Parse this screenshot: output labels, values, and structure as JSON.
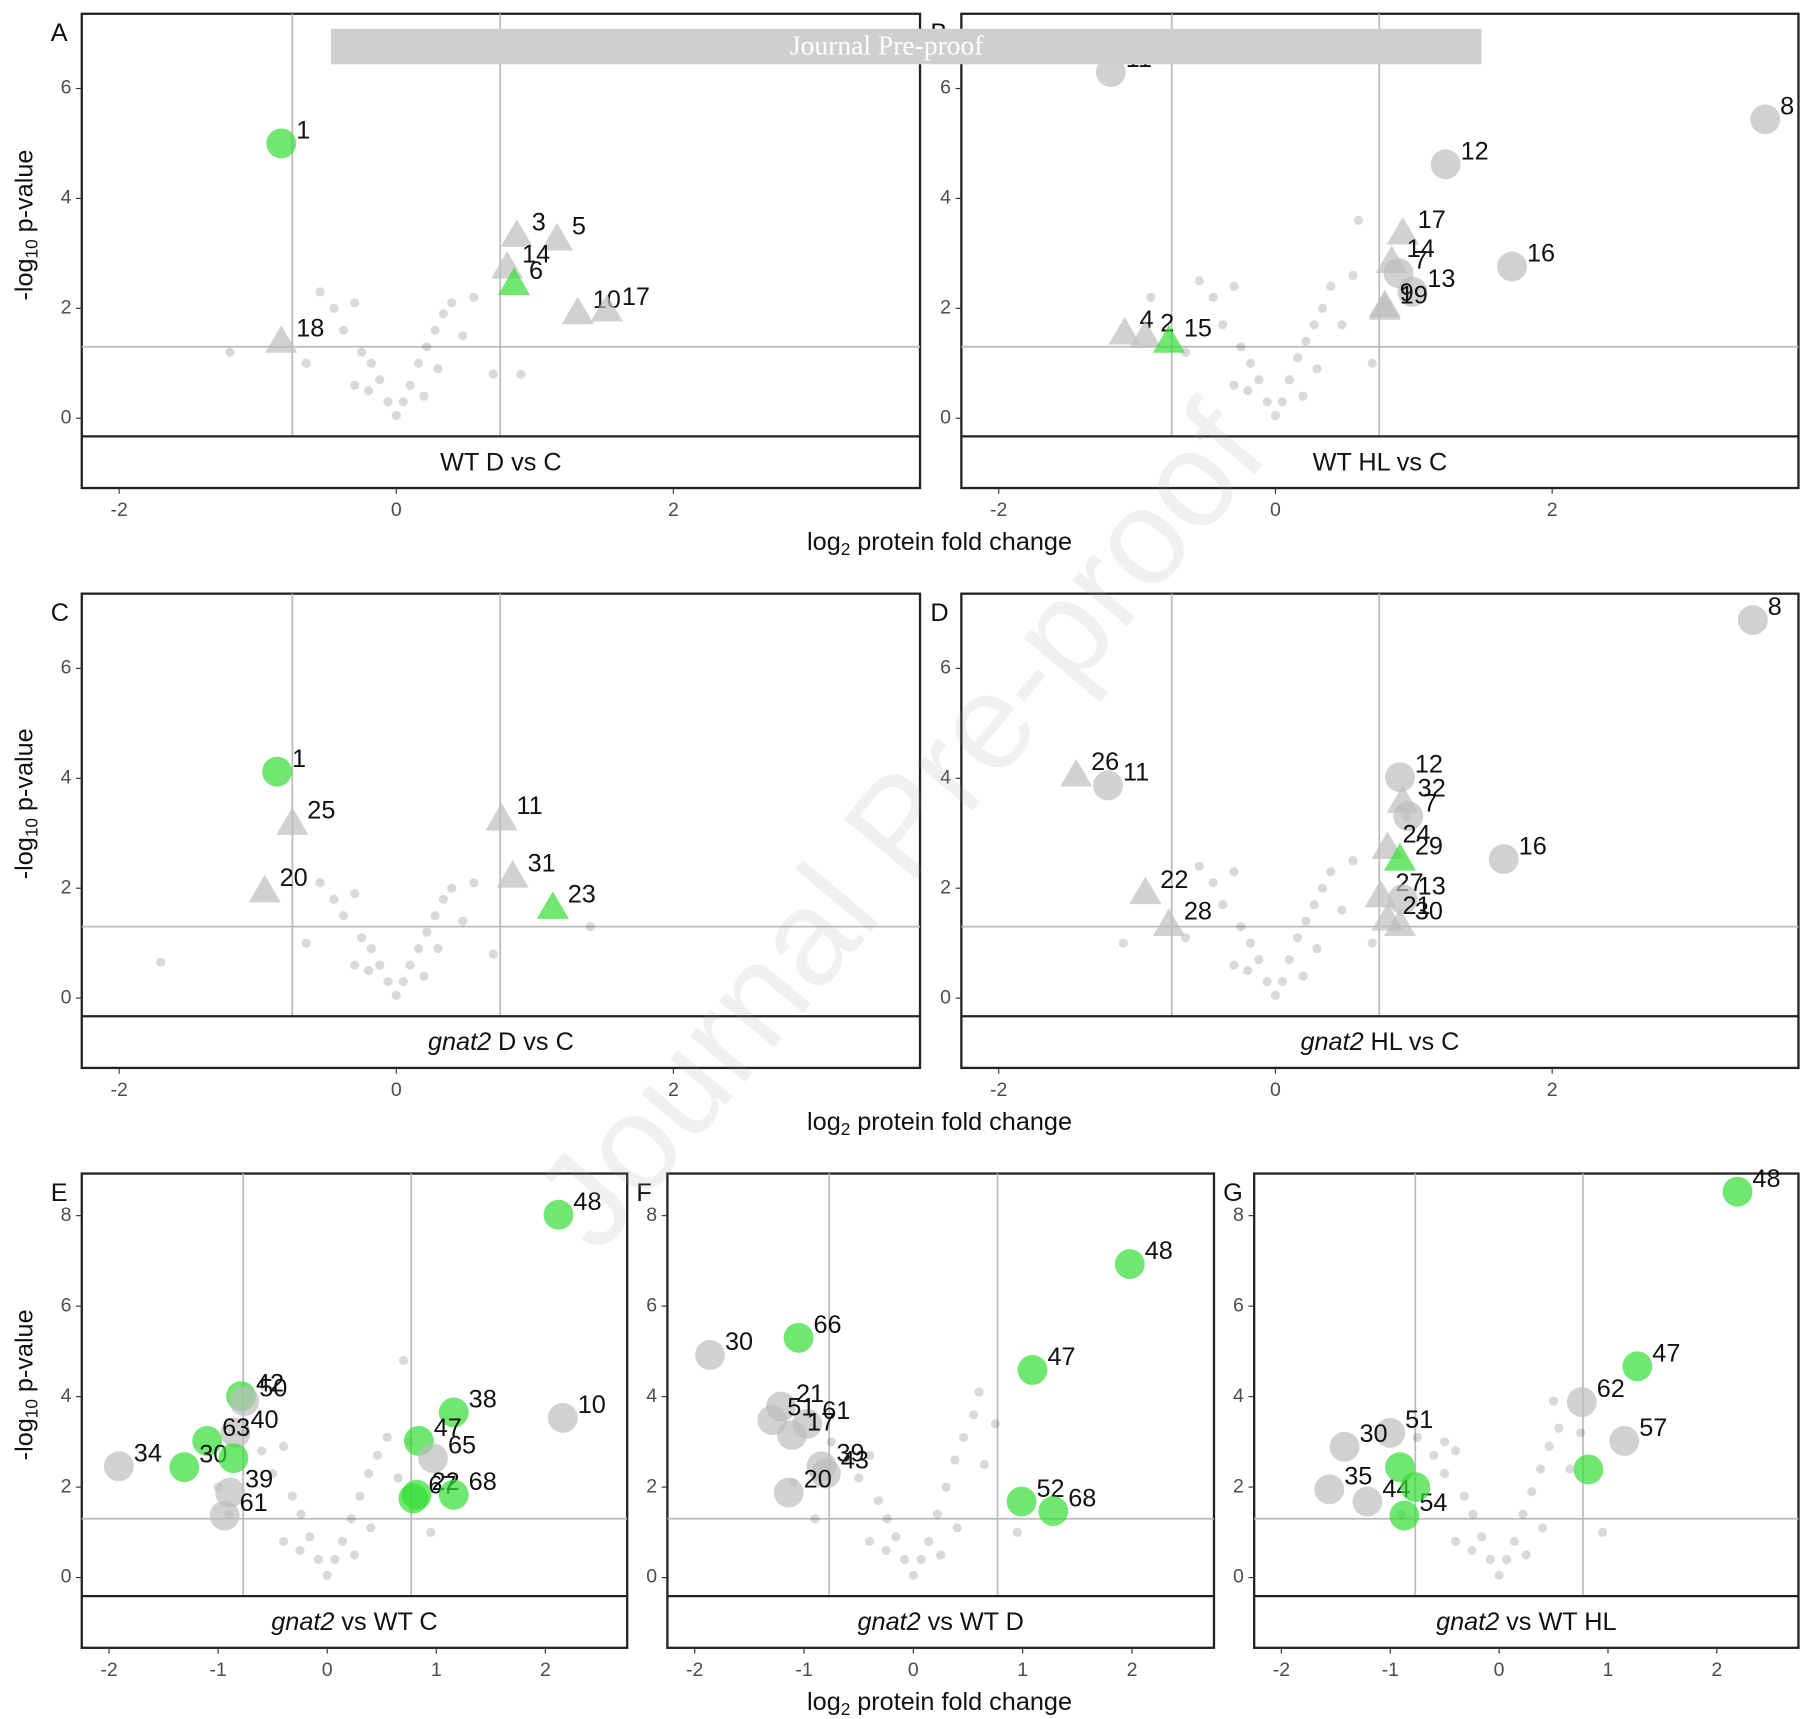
{
  "watermark": {
    "banner": "Journal Pre-proof",
    "diagonal": "Journal Pre-proof"
  },
  "x_axis_titles": [
    {
      "main": "log",
      "sub": "2",
      "rest": "protein fold change"
    },
    {
      "main": "log",
      "sub": "2",
      "rest": "protein fold change"
    },
    {
      "main": "log",
      "sub": "2",
      "rest": "protein fold change"
    }
  ],
  "y_axis_titles": [
    {
      "main": "-log",
      "sub": "10",
      "rest": "p-value"
    },
    {
      "main": "-log",
      "sub": "10",
      "rest": "p-value"
    },
    {
      "main": "-log",
      "sub": "10",
      "rest": "p-value"
    }
  ],
  "chart_data": [
    {
      "type": "scatter",
      "panel": "A",
      "strip": "WT D vs C",
      "xlim": [
        -2.27,
        3.78
      ],
      "ylim": [
        -0.33,
        7.36
      ],
      "xticks": [
        -2,
        0,
        2
      ],
      "yticks": [
        0,
        2,
        4,
        6
      ],
      "vlines": [
        -0.75,
        0.75
      ],
      "hline": 1.3,
      "background": {
        "x": [
          -0.55,
          -0.45,
          -0.38,
          -0.3,
          -0.25,
          -0.18,
          -0.12,
          -0.06,
          0,
          0.05,
          0.1,
          0.16,
          0.22,
          0.28,
          0.34,
          0.4,
          0.48,
          0.56,
          -0.2,
          0.2,
          -0.65,
          0.7,
          0.3,
          -0.3,
          -1.2,
          0.9
        ],
        "y": [
          2.3,
          2.0,
          1.6,
          2.1,
          1.2,
          1.0,
          0.7,
          0.3,
          0.05,
          0.3,
          0.6,
          1.0,
          1.3,
          1.6,
          1.9,
          2.1,
          1.5,
          2.2,
          0.5,
          0.4,
          1.0,
          0.8,
          0.9,
          0.6,
          1.2,
          0.8
        ]
      },
      "highlights": {
        "x": [
          -0.83,
          0.87,
          1.16,
          0.8,
          0.85,
          1.31,
          1.52,
          -0.83
        ],
        "y": [
          5.0,
          3.33,
          3.26,
          2.75,
          2.45,
          1.92,
          1.97,
          1.4
        ],
        "labels": [
          "1",
          "3",
          "5",
          "14",
          "6",
          "10",
          "17",
          "18"
        ],
        "shape": [
          "circle",
          "triangle",
          "triangle",
          "triangle",
          "triangle",
          "triangle",
          "triangle",
          "triangle"
        ],
        "color": [
          "#33dd33",
          "#bdbdbd",
          "#bdbdbd",
          "#bdbdbd",
          "#33dd33",
          "#bdbdbd",
          "#bdbdbd",
          "#bdbdbd"
        ]
      }
    },
    {
      "type": "scatter",
      "panel": "B",
      "strip": "WT HL vs C",
      "xlim": [
        -2.27,
        3.78
      ],
      "ylim": [
        -0.33,
        7.36
      ],
      "xticks": [
        -2,
        0,
        2
      ],
      "yticks": [
        0,
        2,
        4,
        6
      ],
      "vlines": [
        -0.75,
        0.75
      ],
      "hline": 1.3,
      "background": {
        "x": [
          -0.55,
          -0.45,
          -0.38,
          -0.3,
          -0.25,
          -0.18,
          -0.12,
          -0.06,
          0,
          0.05,
          0.1,
          0.16,
          0.22,
          0.28,
          0.34,
          0.4,
          0.48,
          0.56,
          -0.2,
          0.2,
          -0.65,
          0.7,
          0.3,
          -0.3,
          -0.9,
          0.6
        ],
        "y": [
          2.5,
          2.2,
          1.7,
          2.4,
          1.3,
          1.0,
          0.7,
          0.3,
          0.05,
          0.3,
          0.7,
          1.1,
          1.4,
          1.7,
          2.0,
          2.4,
          1.7,
          2.6,
          0.5,
          0.4,
          1.2,
          1.0,
          0.9,
          0.6,
          2.2,
          3.6
        ]
      },
      "highlights": {
        "x": [
          -1.19,
          3.54,
          1.23,
          0.92,
          0.84,
          0.89,
          1.71,
          0.99,
          0.79,
          0.79,
          -1.09,
          -0.94,
          -0.77
        ],
        "y": [
          6.3,
          5.44,
          4.62,
          3.37,
          2.85,
          2.64,
          2.76,
          2.3,
          2.05,
          2.0,
          1.55,
          1.49,
          1.4
        ],
        "labels": [
          "11",
          "8",
          "12",
          "17",
          "14",
          "7",
          "16",
          "13",
          "9",
          "19",
          "4",
          "2",
          "15"
        ],
        "shape": [
          "circle",
          "circle",
          "circle",
          "triangle",
          "triangle",
          "circle",
          "circle",
          "circle",
          "triangle",
          "triangle",
          "triangle",
          "triangle",
          "triangle"
        ],
        "color": [
          "#bdbdbd",
          "#bdbdbd",
          "#bdbdbd",
          "#bdbdbd",
          "#bdbdbd",
          "#bdbdbd",
          "#bdbdbd",
          "#bdbdbd",
          "#bdbdbd",
          "#bdbdbd",
          "#bdbdbd",
          "#bdbdbd",
          "#33dd33"
        ]
      }
    },
    {
      "type": "scatter",
      "panel": "C",
      "strip_em": "gnat2",
      "strip": "D vs C",
      "xlim": [
        -2.27,
        3.78
      ],
      "ylim": [
        -0.33,
        7.36
      ],
      "xticks": [
        -2,
        0,
        2
      ],
      "yticks": [
        0,
        2,
        4,
        6
      ],
      "vlines": [
        -0.75,
        0.75
      ],
      "hline": 1.3,
      "background": {
        "x": [
          -0.55,
          -0.45,
          -0.38,
          -0.3,
          -0.25,
          -0.18,
          -0.12,
          -0.06,
          0,
          0.05,
          0.1,
          0.16,
          0.22,
          0.28,
          0.34,
          0.4,
          0.48,
          0.56,
          -0.2,
          0.2,
          -0.65,
          0.7,
          0.3,
          -0.3,
          -1.7,
          1.4
        ],
        "y": [
          2.1,
          1.8,
          1.5,
          1.9,
          1.1,
          0.9,
          0.6,
          0.3,
          0.05,
          0.3,
          0.6,
          0.9,
          1.2,
          1.5,
          1.8,
          2.0,
          1.4,
          2.1,
          0.5,
          0.4,
          1.0,
          0.8,
          0.9,
          0.6,
          0.65,
          1.3
        ]
      },
      "highlights": {
        "x": [
          -0.86,
          -0.75,
          -0.95,
          0.76,
          0.84,
          1.13
        ],
        "y": [
          4.12,
          3.18,
          1.95,
          3.26,
          2.22,
          1.65
        ],
        "labels": [
          "1",
          "25",
          "20",
          "11",
          "31",
          "23"
        ],
        "shape": [
          "circle",
          "triangle",
          "triangle",
          "triangle",
          "triangle",
          "triangle"
        ],
        "color": [
          "#33dd33",
          "#bdbdbd",
          "#bdbdbd",
          "#bdbdbd",
          "#bdbdbd",
          "#33dd33"
        ]
      }
    },
    {
      "type": "scatter",
      "panel": "D",
      "strip_em": "gnat2",
      "strip": "HL vs C",
      "xlim": [
        -2.27,
        3.78
      ],
      "ylim": [
        -0.33,
        7.36
      ],
      "xticks": [
        -2,
        0,
        2
      ],
      "yticks": [
        0,
        2,
        4,
        6
      ],
      "vlines": [
        -0.75,
        0.75
      ],
      "hline": 1.3,
      "background": {
        "x": [
          -0.55,
          -0.45,
          -0.38,
          -0.3,
          -0.25,
          -0.18,
          -0.12,
          -0.06,
          0,
          0.05,
          0.1,
          0.16,
          0.22,
          0.28,
          0.34,
          0.4,
          0.48,
          0.56,
          -0.2,
          0.2,
          -0.65,
          0.7,
          0.3,
          -0.3,
          -1.1,
          0.95
        ],
        "y": [
          2.4,
          2.1,
          1.7,
          2.3,
          1.3,
          1.0,
          0.7,
          0.3,
          0.05,
          0.3,
          0.7,
          1.1,
          1.4,
          1.7,
          2.0,
          2.3,
          1.6,
          2.5,
          0.5,
          0.4,
          1.1,
          1.0,
          0.9,
          0.6,
          1.0,
          3.3
        ]
      },
      "highlights": {
        "x": [
          3.45,
          -1.44,
          -1.21,
          0.9,
          0.92,
          0.96,
          1.65,
          0.81,
          0.9,
          -0.94,
          0.76,
          0.92,
          0.81,
          -0.77,
          0.9
        ],
        "y": [
          6.88,
          4.06,
          3.87,
          4.02,
          3.58,
          3.31,
          2.53,
          2.74,
          2.53,
          1.92,
          1.86,
          1.8,
          1.44,
          1.34,
          1.34
        ],
        "labels": [
          "8",
          "26",
          "11",
          "12",
          "32",
          "7",
          "16",
          "24",
          "29",
          "22",
          "27",
          "13",
          "21",
          "28",
          "30"
        ],
        "shape": [
          "circle",
          "triangle",
          "circle",
          "circle",
          "triangle",
          "circle",
          "circle",
          "triangle",
          "triangle",
          "triangle",
          "triangle",
          "circle",
          "triangle",
          "triangle",
          "triangle"
        ],
        "color": [
          "#bdbdbd",
          "#bdbdbd",
          "#bdbdbd",
          "#bdbdbd",
          "#bdbdbd",
          "#bdbdbd",
          "#bdbdbd",
          "#bdbdbd",
          "#33dd33",
          "#bdbdbd",
          "#bdbdbd",
          "#bdbdbd",
          "#bdbdbd",
          "#bdbdbd",
          "#bdbdbd"
        ]
      }
    },
    {
      "type": "scatter",
      "panel": "E",
      "strip_em": "gnat2",
      "strip": "vs WT C",
      "xlim": [
        -2.25,
        2.75
      ],
      "ylim": [
        -0.41,
        8.93
      ],
      "xticks": [
        -2,
        -1,
        0,
        1,
        2
      ],
      "yticks": [
        0,
        2,
        4,
        6,
        8
      ],
      "vlines": [
        -0.77,
        0.77
      ],
      "hline": 1.3,
      "background": {
        "x": [
          -0.75,
          -0.6,
          -0.5,
          -0.4,
          -0.32,
          -0.24,
          -0.16,
          -0.08,
          0,
          0.07,
          0.14,
          0.22,
          0.3,
          0.38,
          0.46,
          0.55,
          0.65,
          0.75,
          -0.25,
          0.25,
          -0.9,
          0.95,
          0.4,
          -0.4,
          0.7,
          -1.0
        ],
        "y": [
          3.2,
          2.8,
          2.3,
          2.9,
          1.8,
          1.4,
          0.9,
          0.4,
          0.05,
          0.4,
          0.8,
          1.3,
          1.8,
          2.3,
          2.7,
          3.1,
          2.2,
          3.0,
          0.6,
          0.5,
          1.4,
          1.0,
          1.1,
          0.8,
          4.8,
          2.0
        ]
      },
      "highlights": {
        "x": [
          2.12,
          1.16,
          0.84,
          2.16,
          -0.79,
          -0.76,
          -0.84,
          -1.1,
          -1.31,
          -1.91,
          -0.89,
          -0.94,
          0.82,
          0.97,
          0.79,
          1.16,
          -0.86
        ],
        "y": [
          8.02,
          3.65,
          3.02,
          3.53,
          4.01,
          3.9,
          3.2,
          3.02,
          2.44,
          2.46,
          1.88,
          1.37,
          1.83,
          2.64,
          1.75,
          1.83,
          2.64
        ],
        "labels": [
          "48",
          "38",
          "47",
          "10",
          "42",
          "50",
          "40",
          "63",
          "30",
          "34",
          "39",
          "61",
          "22",
          "65",
          "67",
          "68",
          null
        ],
        "shape": [
          "circle",
          "circle",
          "circle",
          "circle",
          "circle",
          "circle",
          "circle",
          "circle",
          "circle",
          "circle",
          "circle",
          "circle",
          "circle",
          "circle",
          "circle",
          "circle",
          "circle"
        ],
        "color": [
          "#33dd33",
          "#33dd33",
          "#33dd33",
          "#bdbdbd",
          "#33dd33",
          "#bdbdbd",
          "#bdbdbd",
          "#33dd33",
          "#33dd33",
          "#bdbdbd",
          "#bdbdbd",
          "#bdbdbd",
          "#33dd33",
          "#bdbdbd",
          "#33dd33",
          "#33dd33",
          "#33dd33"
        ]
      }
    },
    {
      "type": "scatter",
      "panel": "F",
      "strip_em": "gnat2",
      "strip": "vs WT D",
      "xlim": [
        -2.25,
        2.75
      ],
      "ylim": [
        -0.41,
        8.93
      ],
      "xticks": [
        -2,
        -1,
        0,
        1,
        2
      ],
      "yticks": [
        0,
        2,
        4,
        6,
        8
      ],
      "vlines": [
        -0.77,
        0.77
      ],
      "hline": 1.3,
      "background": {
        "x": [
          -0.75,
          -0.6,
          -0.5,
          -0.4,
          -0.32,
          -0.24,
          -0.16,
          -0.08,
          0,
          0.07,
          0.14,
          0.22,
          0.3,
          0.38,
          0.46,
          0.55,
          0.65,
          0.75,
          -0.25,
          0.25,
          -0.9,
          0.95,
          0.4,
          -0.4,
          0.6,
          -1.1
        ],
        "y": [
          3.0,
          2.6,
          2.2,
          2.7,
          1.7,
          1.3,
          0.9,
          0.4,
          0.05,
          0.4,
          0.8,
          1.4,
          2.0,
          2.6,
          3.1,
          3.6,
          2.5,
          3.4,
          0.6,
          0.5,
          1.3,
          1.0,
          1.1,
          0.8,
          4.1,
          2.1
        ]
      },
      "highlights": {
        "x": [
          1.98,
          1.09,
          0.99,
          1.28,
          -1.86,
          -1.05,
          -1.21,
          -0.97,
          -1.29,
          -1.11,
          -0.84,
          -0.8,
          -1.14
        ],
        "y": [
          6.93,
          4.59,
          1.68,
          1.47,
          4.92,
          5.3,
          3.78,
          3.4,
          3.48,
          3.15,
          2.46,
          2.3,
          1.88
        ],
        "labels": [
          "48",
          "47",
          "52",
          "68",
          "30",
          "66",
          "21",
          "61",
          "51",
          "17",
          "39",
          "43",
          "20"
        ],
        "shape": [
          "circle",
          "circle",
          "circle",
          "circle",
          "circle",
          "circle",
          "circle",
          "circle",
          "circle",
          "circle",
          "circle",
          "circle",
          "circle"
        ],
        "color": [
          "#33dd33",
          "#33dd33",
          "#33dd33",
          "#33dd33",
          "#bdbdbd",
          "#33dd33",
          "#bdbdbd",
          "#bdbdbd",
          "#bdbdbd",
          "#bdbdbd",
          "#bdbdbd",
          "#bdbdbd",
          "#bdbdbd"
        ]
      }
    },
    {
      "type": "scatter",
      "panel": "G",
      "strip_em": "gnat2",
      "strip": "vs WT HL",
      "xlim": [
        -2.25,
        2.75
      ],
      "ylim": [
        -0.41,
        8.93
      ],
      "xticks": [
        -2,
        -1,
        0,
        1,
        2
      ],
      "yticks": [
        0,
        2,
        4,
        6,
        8
      ],
      "vlines": [
        -0.77,
        0.77
      ],
      "hline": 1.3,
      "background": {
        "x": [
          -0.75,
          -0.6,
          -0.5,
          -0.4,
          -0.32,
          -0.24,
          -0.16,
          -0.08,
          0,
          0.07,
          0.14,
          0.22,
          0.3,
          0.38,
          0.46,
          0.55,
          0.65,
          0.75,
          -0.25,
          0.25,
          -0.9,
          0.95,
          0.4,
          -0.4,
          0.5,
          -0.5
        ],
        "y": [
          3.1,
          2.7,
          2.3,
          2.8,
          1.8,
          1.4,
          0.9,
          0.4,
          0.05,
          0.4,
          0.8,
          1.4,
          1.9,
          2.4,
          2.9,
          3.3,
          2.4,
          3.2,
          0.6,
          0.5,
          1.4,
          1.0,
          1.1,
          0.8,
          3.9,
          3.0
        ]
      },
      "highlights": {
        "x": [
          2.19,
          1.27,
          1.15,
          0.76,
          0.82,
          -1.0,
          -1.42,
          -1.56,
          -1.21,
          -0.87,
          -0.91,
          -0.77
        ],
        "y": [
          8.53,
          4.67,
          3.02,
          3.88,
          2.39,
          3.2,
          2.89,
          1.95,
          1.68,
          1.37,
          2.44,
          2.0
        ],
        "labels": [
          "48",
          "47",
          "57",
          "62",
          null,
          "51",
          "30",
          "35",
          "44",
          "54",
          null,
          null
        ],
        "shape": [
          "circle",
          "circle",
          "circle",
          "circle",
          "circle",
          "circle",
          "circle",
          "circle",
          "circle",
          "circle",
          "circle",
          "circle"
        ],
        "color": [
          "#33dd33",
          "#33dd33",
          "#bdbdbd",
          "#bdbdbd",
          "#33dd33",
          "#bdbdbd",
          "#bdbdbd",
          "#bdbdbd",
          "#bdbdbd",
          "#33dd33",
          "#33dd33",
          "#33dd33"
        ]
      }
    }
  ]
}
